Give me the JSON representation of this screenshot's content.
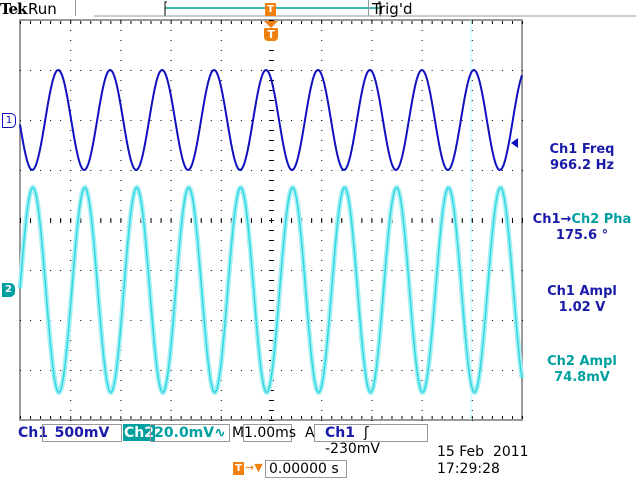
{
  "header": {
    "brand": "Tek",
    "state": "Run",
    "trigger_status": "Trig'd"
  },
  "colors": {
    "ch1": "#1010c0",
    "ch2": "#30d8e0",
    "trigger": "#f08010",
    "text_ch1": "#1a1aa8",
    "text_ch2": "#00a0a0"
  },
  "markers": {
    "ch1": "1",
    "ch2": "2",
    "trigger": "T"
  },
  "measurements": [
    {
      "label": "Ch1 Freq",
      "value": "966.2 Hz"
    },
    {
      "label_a": "Ch1",
      "arrow": "→",
      "label_b": "Ch2 Pha",
      "value": "175.6 °"
    },
    {
      "label": "Ch1 Ampl",
      "value": "1.02 V"
    },
    {
      "label": "Ch2 Ampl",
      "value": "74.8mV"
    }
  ],
  "status_bar": {
    "ch1_label": "Ch1",
    "ch1_scale": "500mV",
    "ch2_label": "Ch2",
    "ch2_scale": "20.0mV∿",
    "timebase_label": "M",
    "timebase": "1.00ms",
    "trigger_mode": "A",
    "trigger_source": "Ch1",
    "trigger_slope": "ʃ",
    "trigger_level": "-230mV"
  },
  "trigger_position": {
    "icon": "T",
    "arrow": "→▼",
    "value": "0.00000 s"
  },
  "datetime": {
    "date": "15 Feb  2011",
    "time": "17:29:28"
  },
  "waveforms": {
    "ch1": {
      "frequency_hz": 966.2,
      "amplitude_div": 1.0,
      "offset_div": 2.0
    },
    "ch2": {
      "frequency_hz": 966.2,
      "phase_deg": 175.6,
      "amplitude_div": 2.05,
      "offset_div": -1.4
    },
    "timebase_ms_per_div": 1.0,
    "divisions_x": 10,
    "divisions_y": 8
  }
}
